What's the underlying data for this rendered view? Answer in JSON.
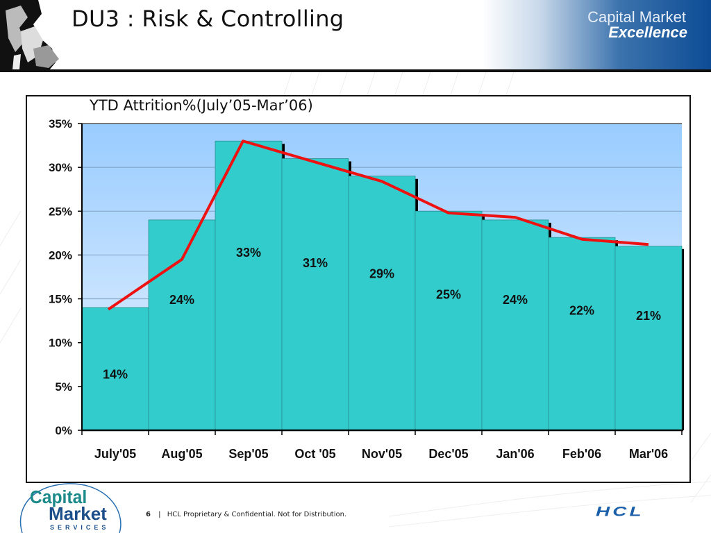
{
  "slide": {
    "title": "DU3 : Risk & Controlling",
    "banner_line1": "Capital Market",
    "banner_line2": "Excellence",
    "footer_page": "6",
    "footer_separator": "|",
    "footer_text": "HCL Proprietary & Confidential. Not for Distribution.",
    "footer_logo_line1": "Capital",
    "footer_logo_line2": "Market",
    "footer_logo_line3": "SERVICES",
    "hcl_logo": "HCL"
  },
  "colors": {
    "bar": "#33cccc",
    "line": "#ee1111",
    "plot_top": "#99ccff",
    "plot_bottom": "#ddeeff",
    "banner": "#0d4c95"
  },
  "chart_data": {
    "type": "bar",
    "title": "YTD Attrition%(July’05-Mar’06)",
    "xlabel": "",
    "ylabel": "",
    "categories": [
      "July'05",
      "Aug'05",
      "Sep'05",
      "Oct '05",
      "Nov'05",
      "Dec'05",
      "Jan'06",
      "Feb'06",
      "Mar'06"
    ],
    "values": [
      14,
      24,
      33,
      31,
      29,
      25,
      24,
      22,
      21
    ],
    "data_labels": [
      "14%",
      "24%",
      "33%",
      "31%",
      "29%",
      "25%",
      "24%",
      "22%",
      "21%"
    ],
    "trend_line": [
      13.8,
      19.5,
      33,
      30.6,
      28.4,
      24.8,
      24.3,
      21.8,
      21.2
    ],
    "ylim": [
      0,
      35
    ],
    "yticks": [
      0,
      5,
      10,
      15,
      20,
      25,
      30,
      35
    ],
    "ytick_labels": [
      "0%",
      "5%",
      "10%",
      "15%",
      "20%",
      "25%",
      "30%",
      "35%"
    ],
    "grid": true,
    "legend": "none"
  }
}
